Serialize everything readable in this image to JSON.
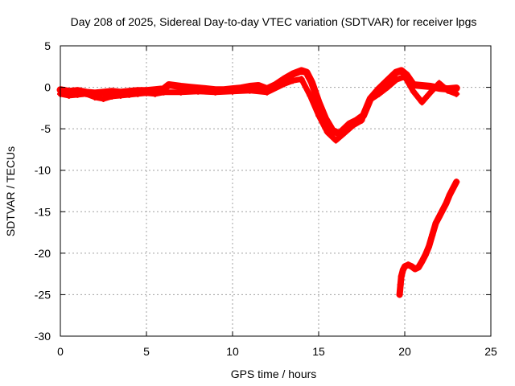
{
  "chart_data": {
    "type": "scatter",
    "title": "Day 208 of 2025, Sidereal Day-to-day VTEC variation (SDTVAR) for receiver lpgs",
    "xlabel": "GPS time / hours",
    "ylabel": "SDTVAR / TECUs",
    "xlim": [
      0,
      25
    ],
    "ylim": [
      -30,
      5
    ],
    "xticks": [
      0,
      5,
      10,
      15,
      20,
      25
    ],
    "yticks": [
      5,
      0,
      -5,
      -10,
      -15,
      -20,
      -25,
      -30
    ],
    "xtick_labels": [
      "0",
      "5",
      "10",
      "15",
      "20",
      "25"
    ],
    "ytick_labels": [
      "5",
      "0",
      "-5",
      "-10",
      "-15",
      "-20",
      "-25",
      "-30"
    ],
    "grid": true,
    "marker_color": "#ff0000",
    "series": [
      {
        "name": "main-band",
        "x": [
          0.0,
          0.5,
          1.0,
          1.5,
          2.0,
          2.5,
          3.0,
          3.5,
          4.0,
          4.5,
          5.0,
          5.5,
          6.0,
          6.3,
          7.0,
          7.5,
          8.0,
          8.5,
          9.0,
          9.5,
          10.0,
          10.5,
          11.0,
          11.5,
          12.0,
          12.5,
          13.0,
          13.5,
          14.0,
          14.3,
          14.6,
          15.0,
          15.4,
          15.8,
          16.2,
          16.5,
          16.8,
          17.2,
          17.6,
          18.0,
          18.5,
          19.0,
          19.5,
          19.8,
          20.1,
          20.5,
          21.0,
          21.5,
          22.0,
          22.5,
          23.0
        ],
        "y": [
          -0.3,
          -0.5,
          -0.4,
          -0.6,
          -0.7,
          -0.6,
          -0.5,
          -0.6,
          -0.5,
          -0.4,
          -0.4,
          -0.3,
          -0.2,
          0.3,
          0.1,
          0.0,
          -0.1,
          -0.2,
          -0.3,
          -0.3,
          -0.2,
          -0.1,
          0.1,
          0.2,
          -0.2,
          0.3,
          1.0,
          1.6,
          2.0,
          1.8,
          0.6,
          -1.8,
          -3.8,
          -5.2,
          -5.6,
          -5.0,
          -4.4,
          -4.0,
          -3.4,
          -1.4,
          -0.2,
          0.8,
          1.8,
          2.0,
          1.5,
          0.3,
          0.2,
          0.1,
          -0.1,
          -0.2,
          -0.1
        ]
      },
      {
        "name": "lower-band",
        "x": [
          0.0,
          0.5,
          1.0,
          1.5,
          2.0,
          2.5,
          3.0,
          3.5,
          4.0,
          4.5,
          5.0,
          5.5,
          6.0,
          7.0,
          8.0,
          9.0,
          10.0,
          11.0,
          12.0,
          13.0,
          13.5,
          14.0,
          14.5,
          15.0,
          15.5,
          16.0,
          16.5,
          17.0,
          17.5,
          18.0,
          18.5,
          19.0,
          19.5,
          20.0,
          20.5,
          21.0,
          21.5,
          22.0,
          22.5,
          23.0
        ],
        "y": [
          -0.8,
          -1.0,
          -0.9,
          -0.8,
          -1.2,
          -1.4,
          -1.1,
          -1.0,
          -0.9,
          -0.8,
          -0.7,
          -0.8,
          -0.6,
          -0.6,
          -0.5,
          -0.6,
          -0.5,
          -0.4,
          -0.6,
          0.4,
          0.8,
          1.0,
          -1.0,
          -3.4,
          -5.4,
          -6.4,
          -5.5,
          -4.6,
          -4.0,
          -1.5,
          -0.8,
          0.0,
          0.9,
          1.3,
          -0.5,
          -1.8,
          -0.6,
          0.5,
          -0.4,
          -0.8
        ]
      },
      {
        "name": "descending-branch",
        "x": [
          19.7,
          19.75,
          19.8,
          19.9,
          20.0,
          20.2,
          20.4,
          20.6,
          20.8,
          21.0,
          21.2,
          21.4,
          21.6,
          21.8,
          22.0,
          22.2,
          22.4,
          22.6,
          22.8,
          23.0
        ],
        "y": [
          -25.0,
          -23.8,
          -22.8,
          -22.0,
          -21.6,
          -21.4,
          -21.6,
          -21.9,
          -21.7,
          -21.0,
          -20.2,
          -19.2,
          -17.8,
          -16.4,
          -15.6,
          -14.8,
          -14.0,
          -13.0,
          -12.2,
          -11.4
        ]
      }
    ]
  }
}
